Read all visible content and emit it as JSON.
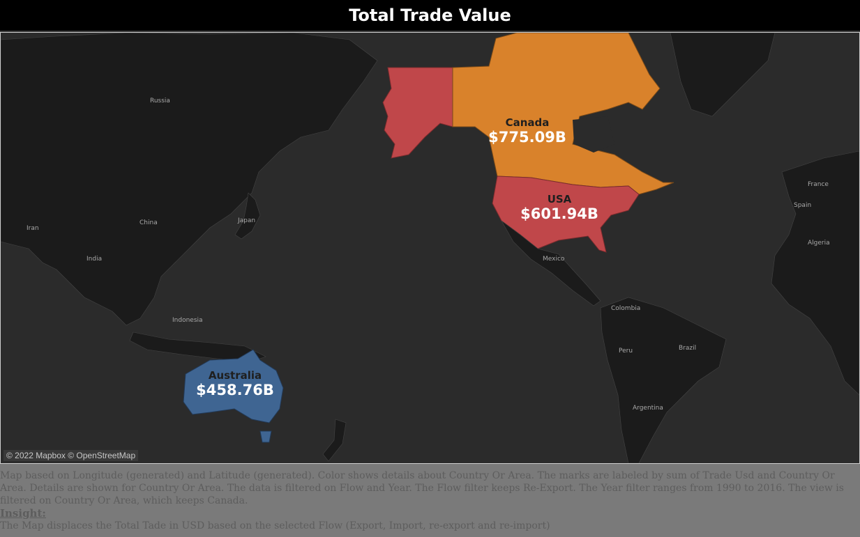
{
  "title": "Total Trade Value",
  "map": {
    "credit": "© 2022 Mapbox © OpenStreetMap",
    "colors": {
      "canada": "#d9822b",
      "usa": "#c0474a",
      "australia": "#3f6592",
      "background": "#2b2b2b",
      "land": "#1a1a1a",
      "ocean": "#2b2b2b"
    },
    "regions": [
      {
        "name": "Canada",
        "value": "$775.09B"
      },
      {
        "name": "USA",
        "value": "$601.94B"
      },
      {
        "name": "Australia",
        "value": "$458.76B"
      }
    ],
    "places": {
      "russia": "Russia",
      "china": "China",
      "japan": "Japan",
      "india": "India",
      "iran": "Iran",
      "indonesia": "Indonesia",
      "mexico": "Mexico",
      "colombia": "Colombia",
      "peru": "Peru",
      "brazil": "Brazil",
      "argentina": "Argentina",
      "france": "France",
      "spain": "Spain",
      "algeria": "Algeria"
    }
  },
  "caption": {
    "description": "Map based on Longitude (generated) and Latitude (generated).  Color shows details about Country Or Area.  The marks are labeled by sum of Trade Usd and Country Or Area.  Details are shown for Country Or Area. The data is filtered on Flow and Year. The Flow filter keeps Re-Export. The Year filter ranges from 1990 to 2016. The view is filtered on Country Or Area, which keeps Canada.",
    "insight_label": "Insight:",
    "insight_text": "The Map displaces the Total Tade in USD based on the selected Flow (Export, Import, re-export and re-import)"
  }
}
